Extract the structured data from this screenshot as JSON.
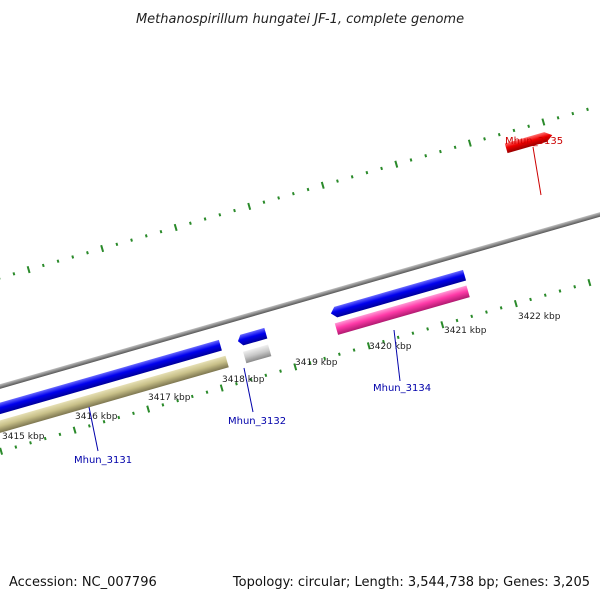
{
  "title": "Methanospirillum hungatei JF-1, complete genome",
  "footer": {
    "accession": "Accession: NC_007796",
    "summary": "Topology: circular; Length: 3,544,738 bp; Genes: 3,205"
  },
  "ticks": [
    "3415 kbp",
    "3416 kbp",
    "3417 kbp",
    "3418 kbp",
    "3419 kbp",
    "3420 kbp",
    "3421 kbp",
    "3422 kbp"
  ],
  "genes": [
    {
      "name": "Mhun_3131",
      "color": "#0000ee"
    },
    {
      "name": "Mhun_3132",
      "color": "#0000ee"
    },
    {
      "name": "Mhun_3134",
      "color": "#0000ee"
    },
    {
      "name": "Mhun_3135",
      "color": "#dd0000"
    }
  ],
  "colors": {
    "cds": "#0000ee",
    "cds_highlight": "#dd0000",
    "trna": "#c8c089",
    "rrna": "#ff3aa8",
    "other": "#c8c8c8",
    "backbone": "#808080",
    "tick": "#2a8a2a",
    "label_blue": "#0000aa",
    "label_red": "#cc0000"
  }
}
